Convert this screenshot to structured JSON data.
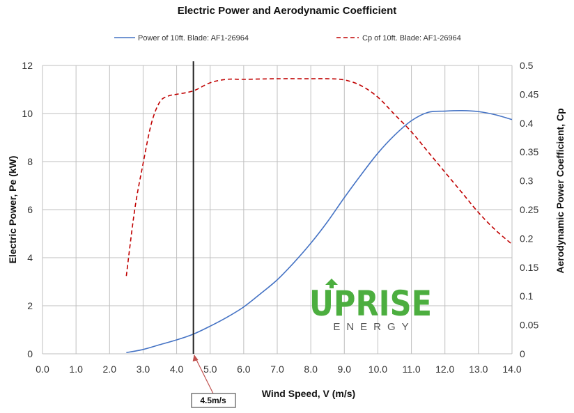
{
  "chart_data": {
    "type": "line",
    "title": "Electric Power and Aerodynamic Coefficient",
    "xlabel": "Wind Speed, V (m/s)",
    "ylabel_left": "Electric Power, Pe (kW)",
    "ylabel_right": "Aerodynamic Power Coefficient, Cp",
    "xlim": [
      0,
      14
    ],
    "ylim_left": [
      0,
      12
    ],
    "ylim_right": [
      0,
      0.5
    ],
    "x_ticks": [
      "0.0",
      "1.0",
      "2.0",
      "3.0",
      "4.0",
      "5.0",
      "6.0",
      "7.0",
      "8.0",
      "9.0",
      "10.0",
      "11.0",
      "12.0",
      "13.0",
      "14.0"
    ],
    "y_left_ticks": [
      "0",
      "2",
      "4",
      "6",
      "8",
      "10",
      "12"
    ],
    "y_right_ticks": [
      "0",
      "0.05",
      "0.1",
      "0.15",
      "0.2",
      "0.25",
      "0.3",
      "0.35",
      "0.4",
      "0.45",
      "0.5"
    ],
    "grid": true,
    "legend_position": "top",
    "series": [
      {
        "name": "Power of 10ft. Blade: AF1-26964",
        "axis": "left",
        "color": "#4472c4",
        "style": "solid",
        "x": [
          2.5,
          3.0,
          3.5,
          4.0,
          4.5,
          5.0,
          5.5,
          6.0,
          6.5,
          7.0,
          7.5,
          8.0,
          8.5,
          9.0,
          9.5,
          10.0,
          10.5,
          11.0,
          11.5,
          12.0,
          12.5,
          13.0,
          13.5,
          14.0
        ],
        "values": [
          0.05,
          0.18,
          0.38,
          0.58,
          0.82,
          1.15,
          1.52,
          1.95,
          2.5,
          3.08,
          3.8,
          4.6,
          5.5,
          6.5,
          7.45,
          8.35,
          9.1,
          9.7,
          10.05,
          10.1,
          10.12,
          10.08,
          9.95,
          9.75
        ]
      },
      {
        "name": "Cp of 10ft. Blade: AF1-26964",
        "axis": "right",
        "color": "#c00000",
        "style": "dashed",
        "x": [
          2.5,
          2.75,
          3.0,
          3.25,
          3.5,
          3.75,
          4.0,
          4.5,
          5.0,
          5.5,
          6.0,
          7.0,
          8.0,
          8.5,
          9.0,
          9.5,
          10.0,
          10.5,
          11.0,
          11.5,
          12.0,
          12.5,
          13.0,
          13.5,
          14.0
        ],
        "values": [
          0.135,
          0.25,
          0.33,
          0.4,
          0.437,
          0.447,
          0.45,
          0.456,
          0.47,
          0.476,
          0.476,
          0.477,
          0.477,
          0.477,
          0.475,
          0.465,
          0.445,
          0.415,
          0.385,
          0.35,
          0.315,
          0.28,
          0.245,
          0.215,
          0.19
        ]
      }
    ],
    "marker_line": {
      "x": 4.5,
      "label": "4.5m/s"
    }
  },
  "logo": {
    "main": "UPRISE",
    "sub": "ENERGY",
    "color": "#4cae3f"
  }
}
